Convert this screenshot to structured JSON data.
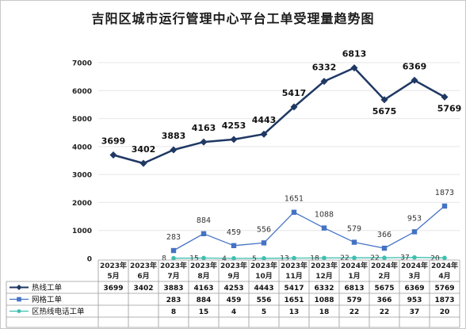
{
  "chart_data": {
    "type": "line",
    "title": "吉阳区城市运行管理中心平台工单受理量趋势图",
    "categories": [
      [
        "2023年",
        "5月"
      ],
      [
        "2023年",
        "6月"
      ],
      [
        "2023年",
        "7月"
      ],
      [
        "2023年",
        "8月"
      ],
      [
        "2023年",
        "9月"
      ],
      [
        "2023年",
        "10月"
      ],
      [
        "2023年",
        "11月"
      ],
      [
        "2023年",
        "12月"
      ],
      [
        "2024年",
        "1月"
      ],
      [
        "2024年",
        "2月"
      ],
      [
        "2024年",
        "3月"
      ],
      [
        "2024年",
        "4月"
      ]
    ],
    "y_ticks": [
      "0",
      "1000",
      "2000",
      "3000",
      "4000",
      "5000",
      "6000",
      "7000"
    ],
    "ylim": [
      0,
      7000
    ],
    "grid": true,
    "legend_position": "bottom-data-table",
    "series": [
      {
        "name": "热线工单",
        "color": "#1f3864",
        "marker": "diamond",
        "values": [
          3699,
          3402,
          3883,
          4163,
          4253,
          4443,
          5417,
          6332,
          6813,
          5675,
          6369,
          5769
        ],
        "labels": [
          "3699",
          "3402",
          "3883",
          "4163",
          "4253",
          "4443",
          "5417",
          "6332",
          "6813",
          "5675",
          "6369",
          "5769"
        ]
      },
      {
        "name": "网格工单",
        "color": "#4472c4",
        "marker": "square",
        "values": [
          null,
          null,
          283,
          884,
          459,
          556,
          1651,
          1088,
          579,
          366,
          953,
          1873
        ],
        "labels": [
          "",
          "",
          "283",
          "884",
          "459",
          "556",
          "1651",
          "1088",
          "579",
          "366",
          "953",
          "1873"
        ]
      },
      {
        "name": "区热线电话工单",
        "color": "#3cbfb0",
        "marker": "circle",
        "values": [
          null,
          null,
          8,
          15,
          4,
          5,
          13,
          18,
          22,
          22,
          37,
          20
        ],
        "labels": [
          "",
          "",
          "8",
          "15",
          "4",
          "5",
          "13",
          "18",
          "22",
          "22",
          "37",
          "20"
        ]
      }
    ]
  }
}
